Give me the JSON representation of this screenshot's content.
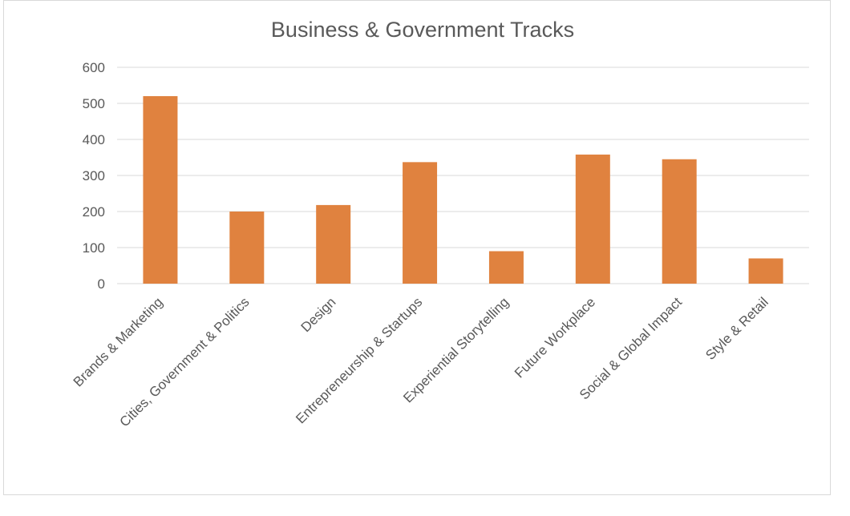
{
  "chart_data": {
    "type": "bar",
    "title": "Business & Government Tracks",
    "xlabel": "",
    "ylabel": "",
    "categories": [
      "Brands & Marketing",
      "Cities, Government & Politics",
      "Design",
      "Entrepreneurship & Startups",
      "Experiential Storytelling",
      "Future Workplace",
      "Social & Global Impact",
      "Style & Retail"
    ],
    "values": [
      520,
      200,
      218,
      337,
      90,
      358,
      345,
      70
    ],
    "ylim": [
      0,
      600
    ],
    "yticks": [
      0,
      100,
      200,
      300,
      400,
      500,
      600
    ],
    "grid": true,
    "legend": "none",
    "bar_color": "#e0823f"
  }
}
